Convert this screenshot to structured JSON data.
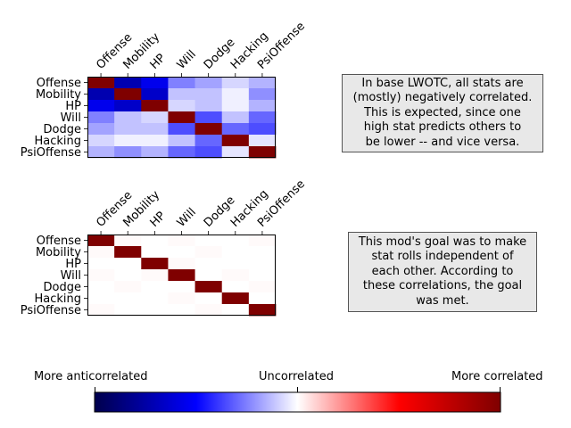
{
  "chart_data": [
    {
      "type": "heatmap",
      "title": "",
      "categories": [
        "Offense",
        "Mobility",
        "HP",
        "Will",
        "Dodge",
        "Hacking",
        "PsiOffense"
      ],
      "matrix": [
        [
          1.0,
          -0.72,
          -0.55,
          -0.25,
          -0.18,
          -0.08,
          -0.15
        ],
        [
          -0.72,
          1.0,
          -0.65,
          -0.12,
          -0.12,
          -0.03,
          -0.22
        ],
        [
          -0.55,
          -0.65,
          1.0,
          -0.08,
          -0.12,
          -0.03,
          -0.15
        ],
        [
          -0.25,
          -0.12,
          -0.08,
          1.0,
          -0.35,
          -0.12,
          -0.3
        ],
        [
          -0.18,
          -0.12,
          -0.12,
          -0.35,
          1.0,
          -0.3,
          -0.35
        ],
        [
          -0.08,
          -0.03,
          -0.03,
          -0.12,
          -0.3,
          1.0,
          -0.05
        ],
        [
          -0.15,
          -0.22,
          -0.15,
          -0.3,
          -0.35,
          -0.05,
          1.0
        ]
      ],
      "vlim": [
        -1,
        1
      ],
      "colormap": "seismic",
      "annotation": "In base LWOTC, all stats are (mostly) negatively correlated. This is expected, since one high stat predicts others to be lower -- and vice versa."
    },
    {
      "type": "heatmap",
      "title": "",
      "categories": [
        "Offense",
        "Mobility",
        "HP",
        "Will",
        "Dodge",
        "Hacking",
        "PsiOffense"
      ],
      "matrix": [
        [
          1.0,
          0.01,
          0.0,
          0.01,
          0.0,
          0.0,
          0.01
        ],
        [
          0.01,
          1.0,
          0.0,
          0.0,
          0.01,
          0.0,
          0.0
        ],
        [
          0.0,
          0.0,
          1.0,
          0.01,
          0.0,
          0.0,
          0.0
        ],
        [
          0.01,
          0.0,
          0.01,
          1.0,
          0.0,
          0.01,
          0.0
        ],
        [
          0.0,
          0.01,
          0.0,
          0.0,
          1.0,
          0.0,
          0.01
        ],
        [
          0.0,
          0.0,
          0.0,
          0.01,
          0.0,
          1.0,
          0.0
        ],
        [
          0.01,
          0.0,
          0.0,
          0.0,
          0.01,
          0.0,
          1.0
        ]
      ],
      "vlim": [
        -1,
        1
      ],
      "colormap": "seismic",
      "annotation": "This mod's goal was to make stat rolls independent of each other. According to these correlations, the goal was met."
    }
  ],
  "colorbar": {
    "labels": [
      "More anticorrelated",
      "Uncorrelated",
      "More correlated"
    ],
    "ticks": [
      -1,
      0,
      1
    ]
  },
  "notes": {
    "top_lines": [
      "In base LWOTC, all stats are",
      "(mostly) negatively correlated.",
      "This is expected, since one",
      "high stat predicts others to",
      "be lower -- and vice versa."
    ],
    "bottom_lines": [
      "This mod's goal was to make",
      "stat rolls independent of",
      "each other. According to",
      "these correlations, the goal",
      "was met."
    ]
  }
}
